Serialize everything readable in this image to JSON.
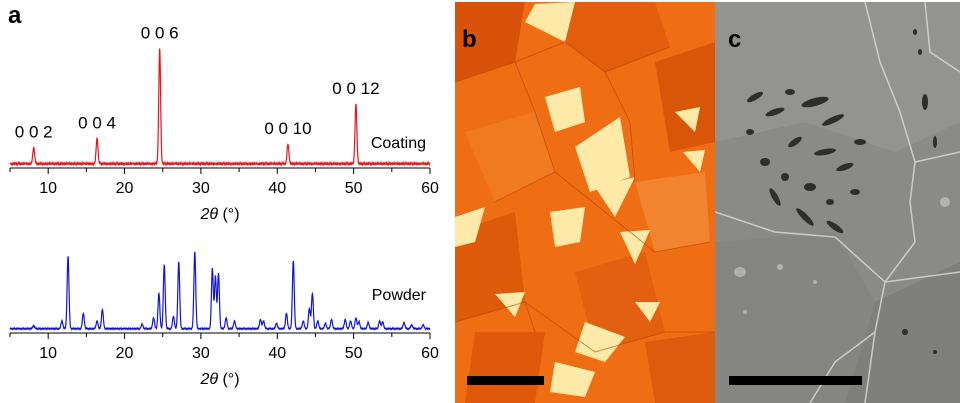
{
  "panels": {
    "a_label": "a",
    "b_label": "b",
    "c_label": "c"
  },
  "chart_data": [
    {
      "type": "line",
      "series": [
        {
          "name": "Coating",
          "color": "#e8141c",
          "baseline": 0.02,
          "peaks": [
            {
              "x": 8.1,
              "y": 0.14,
              "label": "0 0 2"
            },
            {
              "x": 16.4,
              "y": 0.22,
              "label": "0 0 4"
            },
            {
              "x": 24.6,
              "y": 1.0,
              "label": "0 0 6"
            },
            {
              "x": 41.4,
              "y": 0.17,
              "label": "0 0 10"
            },
            {
              "x": 50.3,
              "y": 0.52,
              "label": "0 0 12"
            }
          ]
        }
      ],
      "xlim": [
        5,
        60
      ],
      "xticks": [
        10,
        20,
        30,
        40,
        50,
        60
      ],
      "xlabel": "2θ (°)",
      "xlabel_parts": {
        "italic": "2θ",
        "rest": " (°)"
      },
      "grid": false
    },
    {
      "type": "line",
      "series": [
        {
          "name": "Powder",
          "color": "#1016d4",
          "baseline": 0.03,
          "peaks": [
            {
              "x": 8.1,
              "y": 0.04
            },
            {
              "x": 11.8,
              "y": 0.1
            },
            {
              "x": 12.6,
              "y": 0.94
            },
            {
              "x": 14.6,
              "y": 0.2
            },
            {
              "x": 16.4,
              "y": 0.1
            },
            {
              "x": 17.1,
              "y": 0.25
            },
            {
              "x": 22.3,
              "y": 0.06
            },
            {
              "x": 23.8,
              "y": 0.14
            },
            {
              "x": 24.5,
              "y": 0.46
            },
            {
              "x": 25.2,
              "y": 0.83
            },
            {
              "x": 26.4,
              "y": 0.16
            },
            {
              "x": 27.1,
              "y": 0.87
            },
            {
              "x": 29.2,
              "y": 1.0
            },
            {
              "x": 31.5,
              "y": 0.78
            },
            {
              "x": 31.9,
              "y": 0.68
            },
            {
              "x": 32.3,
              "y": 0.72
            },
            {
              "x": 33.3,
              "y": 0.14
            },
            {
              "x": 34.4,
              "y": 0.1
            },
            {
              "x": 37.8,
              "y": 0.12
            },
            {
              "x": 38.2,
              "y": 0.1
            },
            {
              "x": 39.9,
              "y": 0.07
            },
            {
              "x": 41.2,
              "y": 0.2
            },
            {
              "x": 42.1,
              "y": 0.88
            },
            {
              "x": 43.4,
              "y": 0.1
            },
            {
              "x": 44.2,
              "y": 0.26
            },
            {
              "x": 44.6,
              "y": 0.46
            },
            {
              "x": 45.3,
              "y": 0.1
            },
            {
              "x": 46.3,
              "y": 0.07
            },
            {
              "x": 47.1,
              "y": 0.12
            },
            {
              "x": 48.9,
              "y": 0.12
            },
            {
              "x": 49.6,
              "y": 0.1
            },
            {
              "x": 50.3,
              "y": 0.14
            },
            {
              "x": 50.7,
              "y": 0.09
            },
            {
              "x": 51.9,
              "y": 0.08
            },
            {
              "x": 53.4,
              "y": 0.1
            },
            {
              "x": 53.8,
              "y": 0.09
            },
            {
              "x": 56.6,
              "y": 0.08
            },
            {
              "x": 57.6,
              "y": 0.05
            },
            {
              "x": 59.1,
              "y": 0.05
            }
          ]
        }
      ],
      "xlim": [
        5,
        60
      ],
      "xticks": [
        10,
        20,
        30,
        40,
        50,
        60
      ],
      "xlabel": "2θ (°)",
      "xlabel_parts": {
        "italic": "2θ",
        "rest": " (°)"
      },
      "grid": false
    }
  ],
  "colors": {
    "micrograph_b_bg": "#fde9a8",
    "micrograph_b_crystal": "#ef6e14",
    "micrograph_c_bg": "#8a8a88",
    "scale_bar": "#000000"
  }
}
